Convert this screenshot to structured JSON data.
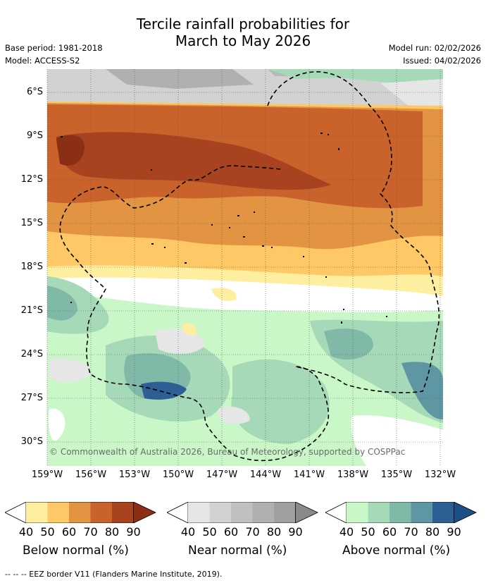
{
  "title": {
    "line1": "Tercile rainfall probabilities for",
    "line2": "March to May 2026"
  },
  "meta": {
    "base_period": "Base period: 1981-2018",
    "model": "Model: ACCESS-S2",
    "model_run": "Model run: 02/02/2026",
    "issued": "Issued: 04/02/2026"
  },
  "map": {
    "y_ticks": [
      "6°S",
      "9°S",
      "12°S",
      "15°S",
      "18°S",
      "21°S",
      "24°S",
      "27°S",
      "30°S"
    ],
    "x_ticks": [
      "159°W",
      "156°W",
      "153°W",
      "150°W",
      "147°W",
      "144°W",
      "141°W",
      "138°W",
      "135°W",
      "132°W"
    ],
    "copyright": "© Commonwealth of Australia 2026, Bureau of Meteorology, supported by COSPPac"
  },
  "legends": [
    {
      "title": "Below normal (%)",
      "ticks": [
        "40",
        "50",
        "60",
        "70",
        "80",
        "90"
      ],
      "colors": [
        "#ffffff",
        "#fdeea0",
        "#fdc865",
        "#e39443",
        "#c9622b",
        "#a8421f",
        "#8a2e16"
      ]
    },
    {
      "title": "Near normal (%)",
      "ticks": [
        "40",
        "50",
        "60",
        "70",
        "80",
        "90"
      ],
      "colors": [
        "#ffffff",
        "#e6e6e6",
        "#d2d2d2",
        "#c0c0c0",
        "#b0b0b0",
        "#a0a0a0",
        "#8a8a8a"
      ]
    },
    {
      "title": "Above normal (%)",
      "ticks": [
        "40",
        "50",
        "60",
        "70",
        "80",
        "90"
      ],
      "colors": [
        "#ffffff",
        "#c9f7c8",
        "#a5d9b8",
        "#80b9a7",
        "#5f96a3",
        "#2d5f95",
        "#1c4f86"
      ]
    }
  ],
  "footer": "--  --  -- EEZ border V11 (Flanders Marine Institute, 2019)."
}
